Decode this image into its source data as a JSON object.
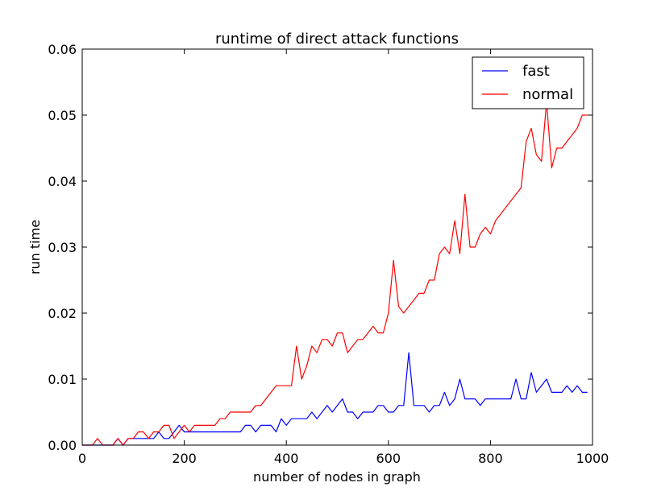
{
  "chart_data": {
    "type": "line",
    "title": "runtime of direct attack functions",
    "xlabel": "number of nodes in graph",
    "ylabel": "run time",
    "xlim": [
      0,
      1000
    ],
    "ylim": [
      0,
      0.06
    ],
    "xticks": [
      0,
      200,
      400,
      600,
      800,
      1000
    ],
    "xtick_labels": [
      "0",
      "200",
      "400",
      "600",
      "800",
      "1000"
    ],
    "yticks": [
      0,
      0.01,
      0.02,
      0.03,
      0.04,
      0.05,
      0.06
    ],
    "ytick_labels": [
      "0.00",
      "0.01",
      "0.02",
      "0.03",
      "0.04",
      "0.05",
      "0.06"
    ],
    "grid": false,
    "legend_position": "top-right",
    "x": [
      0,
      10,
      20,
      30,
      40,
      50,
      60,
      70,
      80,
      90,
      100,
      110,
      120,
      130,
      140,
      150,
      160,
      170,
      180,
      190,
      200,
      210,
      220,
      230,
      240,
      250,
      260,
      270,
      280,
      290,
      300,
      310,
      320,
      330,
      340,
      350,
      360,
      370,
      380,
      390,
      400,
      410,
      420,
      430,
      440,
      450,
      460,
      470,
      480,
      490,
      500,
      510,
      520,
      530,
      540,
      550,
      560,
      570,
      580,
      590,
      600,
      610,
      620,
      630,
      640,
      650,
      660,
      670,
      680,
      690,
      700,
      710,
      720,
      730,
      740,
      750,
      760,
      770,
      780,
      790,
      800,
      810,
      820,
      830,
      840,
      850,
      860,
      870,
      880,
      890,
      900,
      910,
      920,
      930,
      940,
      950,
      960,
      970,
      980,
      990
    ],
    "series": [
      {
        "name": "fast",
        "color": "#0000ff",
        "values": [
          0,
          0,
          0,
          0,
          0,
          0,
          0,
          0.001,
          0,
          0.001,
          0.001,
          0.001,
          0.001,
          0.001,
          0.001,
          0.002,
          0.001,
          0.001,
          0.002,
          0.003,
          0.002,
          0.002,
          0.002,
          0.002,
          0.002,
          0.002,
          0.002,
          0.002,
          0.002,
          0.002,
          0.002,
          0.002,
          0.003,
          0.003,
          0.002,
          0.003,
          0.003,
          0.003,
          0.002,
          0.004,
          0.003,
          0.004,
          0.004,
          0.004,
          0.004,
          0.005,
          0.004,
          0.005,
          0.006,
          0.005,
          0.006,
          0.007,
          0.005,
          0.005,
          0.004,
          0.005,
          0.005,
          0.005,
          0.006,
          0.006,
          0.005,
          0.005,
          0.006,
          0.006,
          0.014,
          0.006,
          0.006,
          0.006,
          0.005,
          0.006,
          0.006,
          0.008,
          0.006,
          0.007,
          0.01,
          0.007,
          0.007,
          0.007,
          0.006,
          0.007,
          0.007,
          0.007,
          0.007,
          0.007,
          0.007,
          0.01,
          0.007,
          0.007,
          0.011,
          0.008,
          0.009,
          0.01,
          0.008,
          0.008,
          0.008,
          0.009,
          0.008,
          0.009,
          0.008,
          0.008
        ]
      },
      {
        "name": "normal",
        "color": "#ff0000",
        "values": [
          0,
          0,
          0,
          0.001,
          0,
          0,
          0,
          0.001,
          0,
          0.001,
          0.001,
          0.002,
          0.002,
          0.001,
          0.002,
          0.002,
          0.003,
          0.003,
          0.001,
          0.002,
          0.003,
          0.002,
          0.003,
          0.003,
          0.003,
          0.003,
          0.003,
          0.004,
          0.004,
          0.005,
          0.005,
          0.005,
          0.005,
          0.005,
          0.006,
          0.006,
          0.007,
          0.008,
          0.009,
          0.009,
          0.009,
          0.009,
          0.015,
          0.01,
          0.012,
          0.015,
          0.014,
          0.016,
          0.016,
          0.015,
          0.017,
          0.017,
          0.014,
          0.015,
          0.016,
          0.016,
          0.017,
          0.018,
          0.017,
          0.017,
          0.02,
          0.028,
          0.021,
          0.02,
          0.021,
          0.022,
          0.023,
          0.023,
          0.025,
          0.025,
          0.029,
          0.03,
          0.029,
          0.034,
          0.029,
          0.038,
          0.03,
          0.03,
          0.032,
          0.033,
          0.032,
          0.034,
          0.035,
          0.036,
          0.037,
          0.038,
          0.039,
          0.046,
          0.048,
          0.044,
          0.043,
          0.052,
          0.042,
          0.045,
          0.045,
          0.046,
          0.047,
          0.048,
          0.05,
          0.05
        ]
      }
    ]
  }
}
